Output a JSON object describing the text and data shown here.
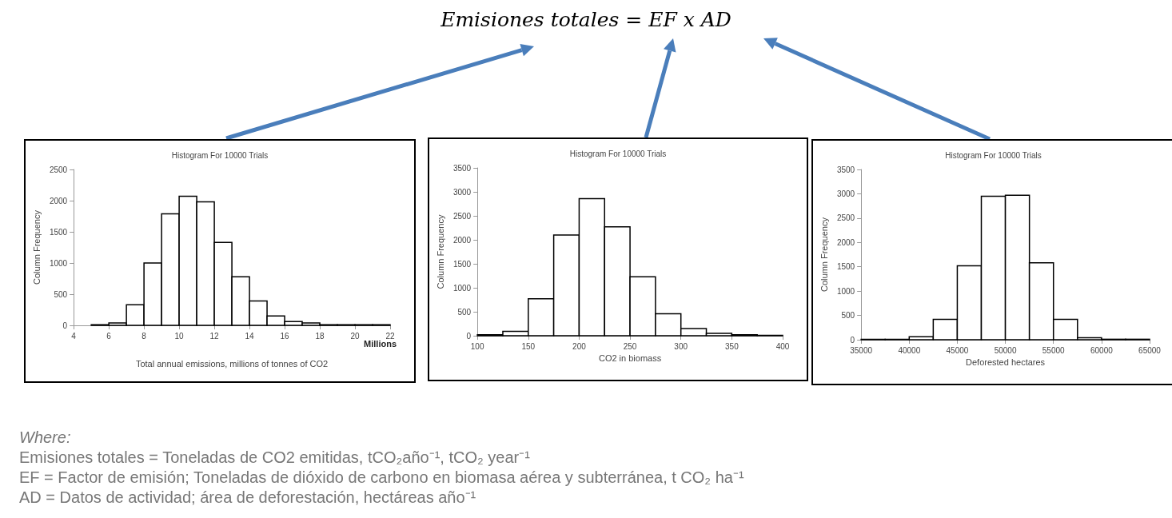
{
  "chart_data": [
    {
      "type": "other",
      "title": "Emisiones totales = EF x AD"
    },
    {
      "type": "histogram",
      "title": "Histogram For 10000 Trials",
      "xlabel": "Total annual emissions, millions of tonnes of CO2",
      "ylabel": "Column Frequency",
      "color": "#ffffff",
      "annotations": [
        "Millions"
      ],
      "bins": [
        5,
        6,
        7,
        8,
        9,
        10,
        11,
        12,
        13,
        14,
        15,
        16,
        17,
        18,
        19,
        20,
        21,
        22
      ],
      "values": [
        10,
        40,
        330,
        1000,
        1790,
        2070,
        1980,
        1330,
        780,
        390,
        150,
        60,
        40,
        10,
        10,
        10,
        10
      ],
      "xlim": [
        4,
        22
      ],
      "xticks": [
        4,
        6,
        8,
        10,
        12,
        14,
        16,
        18,
        20,
        22
      ],
      "ylim": [
        0,
        2500
      ],
      "yticks": [
        0,
        500,
        1000,
        1500,
        2000,
        2500
      ],
      "grid": false
    },
    {
      "type": "histogram",
      "title": "Histogram For 10000 Trials",
      "xlabel": "CO2 in biomass",
      "ylabel": "Column Frequency",
      "color": "#ffffff",
      "bins": [
        100,
        125,
        150,
        175,
        200,
        225,
        250,
        275,
        300,
        325,
        350,
        375,
        400
      ],
      "values": [
        20,
        90,
        770,
        2100,
        2860,
        2270,
        1230,
        460,
        150,
        50,
        20,
        10
      ],
      "xlim": [
        100,
        400
      ],
      "xticks": [
        100,
        150,
        200,
        250,
        300,
        350,
        400
      ],
      "ylim": [
        0,
        3500
      ],
      "yticks": [
        0,
        500,
        1000,
        1500,
        2000,
        2500,
        3000,
        3500
      ],
      "grid": false
    },
    {
      "type": "histogram",
      "title": "Histogram For 10000 Trials",
      "xlabel": "Deforested hectares",
      "ylabel": "Column Frequency",
      "color": "#ffffff",
      "bins": [
        35000,
        37500,
        40000,
        42500,
        45000,
        47500,
        50000,
        52500,
        55000,
        57500,
        60000,
        62500,
        65000
      ],
      "values": [
        10,
        10,
        60,
        420,
        1520,
        2950,
        2970,
        1580,
        420,
        40,
        10,
        10
      ],
      "xlim": [
        35000,
        65000
      ],
      "xticks": [
        35000,
        40000,
        45000,
        50000,
        55000,
        60000,
        65000
      ],
      "ylim": [
        0,
        3500
      ],
      "yticks": [
        0,
        500,
        1000,
        1500,
        2000,
        2500,
        3000,
        3500
      ],
      "grid": false
    },
    {
      "type": "other",
      "annotations": [
        "Where:",
        "Emisiones totales = Toneladas de CO2 emitidas, tCO₂año⁻¹, tCO₂ year⁻¹",
        "EF = Factor de emisión; Toneladas de dióxido de carbono en biomasa aérea y subterránea, t CO₂ ha⁻¹",
        "AD = Datos de actividad; área de deforestación, hectáreas año⁻¹"
      ]
    }
  ]
}
